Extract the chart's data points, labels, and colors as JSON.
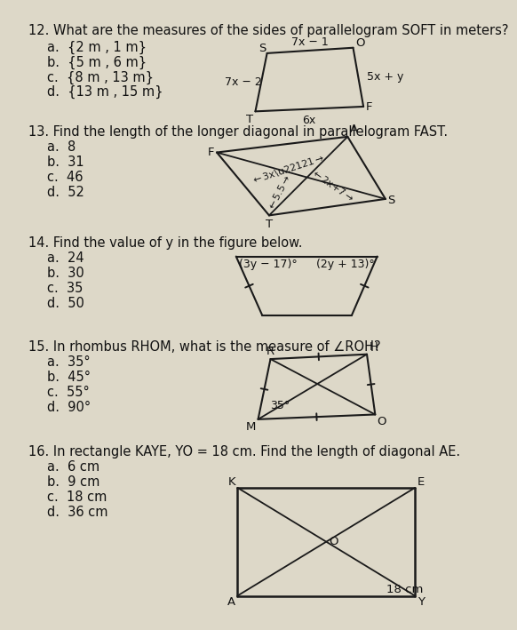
{
  "bg_color": "#ddd8c8",
  "text_color": "#1a1a1a",
  "q12_text": "12. What are the measures of the sides of parallelogram SOFT in meters?",
  "q12_choices": [
    "a.  {2 m , 1 m}",
    "b.  {5 m , 6 m}",
    "c.  {8 m , 13 m}",
    "d.  {13 m , 15 m}"
  ],
  "q13_text": "13. Find the length of the longer diagonal in parallelogram FAST.",
  "q13_choices": [
    "a.  8",
    "b.  31",
    "c.  46",
    "d.  52"
  ],
  "q14_text": "14. Find the value of y in the figure below.",
  "q14_choices": [
    "a.  24",
    "b.  30",
    "c.  35",
    "d.  50"
  ],
  "q15_text": "15. In rhombus RHOM, what is the measure of ∠ROH?",
  "q15_choices": [
    "a.  35°",
    "b.  45°",
    "c.  55°",
    "d.  90°"
  ],
  "q16_text": "16. In rectangle KAYE, YO = 18 cm. Find the length of diagonal AE.",
  "q16_choices": [
    "a.  6 cm",
    "b.  9 cm",
    "c.  18 cm",
    "d.  36 cm"
  ]
}
